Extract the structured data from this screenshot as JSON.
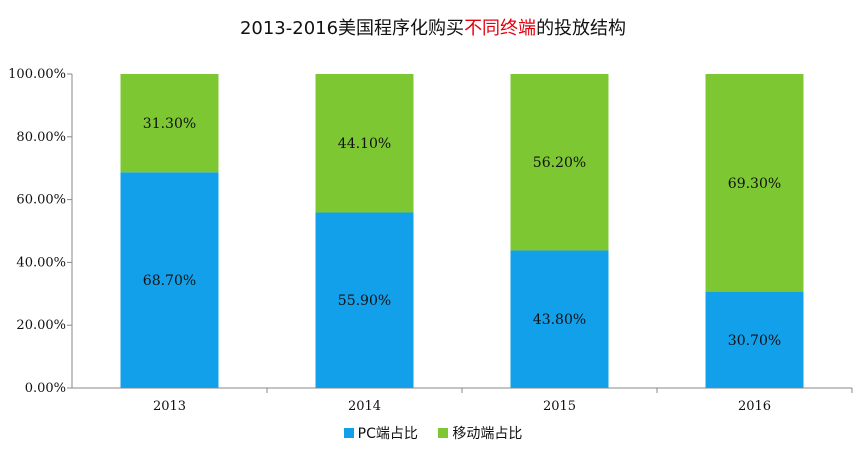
{
  "title": {
    "prefix": "2013-2016美国程序化购买",
    "highlight": "不同终端",
    "suffix": "的投放结构"
  },
  "colors": {
    "pc": "#12a0ea",
    "mobile": "#7dc832",
    "highlight": "#e3000f",
    "axis": "#888888"
  },
  "chart_data": {
    "type": "bar",
    "stacked": true,
    "categories": [
      "2013",
      "2014",
      "2015",
      "2016"
    ],
    "series": [
      {
        "name": "PC端占比",
        "values": [
          68.7,
          55.9,
          43.8,
          30.7
        ],
        "labels": [
          "68.70%",
          "55.90%",
          "43.80%",
          "30.70%"
        ]
      },
      {
        "name": "移动端占比",
        "values": [
          31.3,
          44.1,
          56.2,
          69.3
        ],
        "labels": [
          "31.30%",
          "44.10%",
          "56.20%",
          "69.30%"
        ]
      }
    ],
    "yticks": [
      "0.00%",
      "20.00%",
      "40.00%",
      "60.00%",
      "80.00%",
      "100.00%"
    ],
    "ylim": [
      0,
      100
    ],
    "grid": false,
    "legend": "bottom"
  }
}
